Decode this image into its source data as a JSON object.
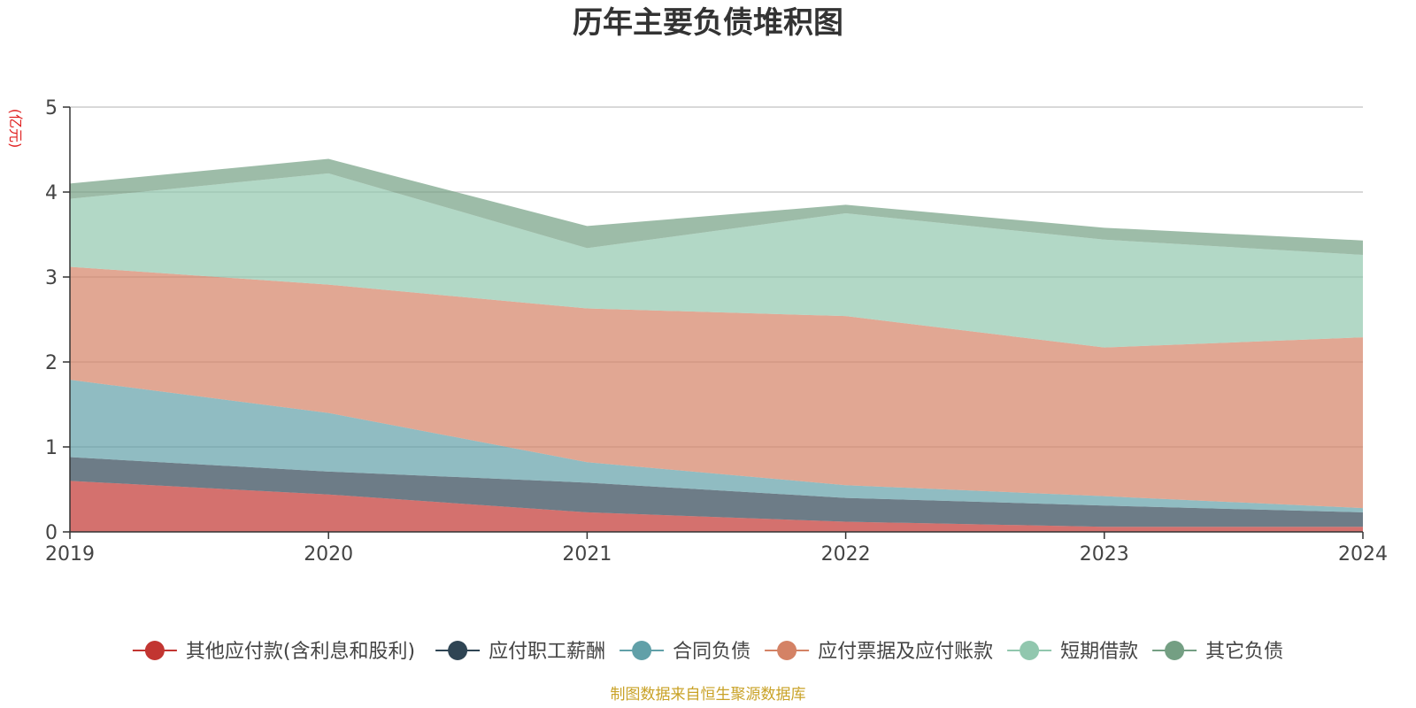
{
  "chart_data": {
    "type": "area",
    "stacked": true,
    "title": "历年主要负债堆积图",
    "unit_label": "(亿元)",
    "source": "制图数据来自恒生聚源数据库",
    "x": [
      "2019",
      "2020",
      "2021",
      "2022",
      "2023",
      "2024"
    ],
    "ylim": [
      0,
      5
    ],
    "yticks": [
      "0",
      "1",
      "2",
      "3",
      "4",
      "5"
    ],
    "grid": true,
    "legend_position": "bottom",
    "series": [
      {
        "name": "其他应付款(含利息和股利)",
        "color": "#c23531",
        "values": [
          0.6,
          0.44,
          0.23,
          0.12,
          0.06,
          0.06
        ]
      },
      {
        "name": "应付职工薪酬",
        "color": "#2f4554",
        "values": [
          0.28,
          0.27,
          0.35,
          0.28,
          0.25,
          0.17
        ]
      },
      {
        "name": "合同负债",
        "color": "#61a0a8",
        "values": [
          0.91,
          0.69,
          0.24,
          0.15,
          0.11,
          0.05
        ]
      },
      {
        "name": "应付票据及应付账款",
        "color": "#d48265",
        "values": [
          1.33,
          1.51,
          1.81,
          1.99,
          1.75,
          2.01
        ]
      },
      {
        "name": "短期借款",
        "color": "#91c7ae",
        "values": [
          0.8,
          1.31,
          0.71,
          1.21,
          1.27,
          0.97
        ]
      },
      {
        "name": "其它负债",
        "color": "#749f83",
        "values": [
          0.18,
          0.17,
          0.26,
          0.1,
          0.14,
          0.17
        ]
      }
    ]
  }
}
